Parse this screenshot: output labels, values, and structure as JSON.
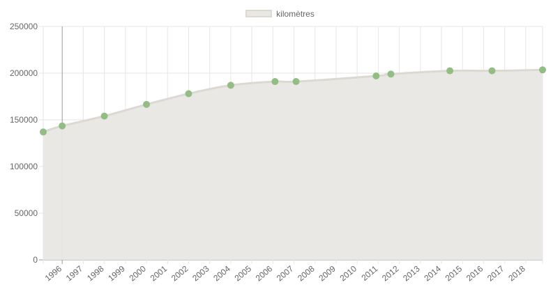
{
  "chart_data": {
    "type": "area",
    "x_labels": [
      "1996",
      "1997",
      "1998",
      "1999",
      "2000",
      "2001",
      "2002",
      "2003",
      "2004",
      "2005",
      "2006",
      "2007",
      "2008",
      "2009",
      "2010",
      "2011",
      "2012",
      "2013",
      "2014",
      "2015",
      "2016",
      "2017",
      "2018"
    ],
    "series": [
      {
        "name": "kilomètres",
        "points": [
          {
            "x": 1995.1,
            "y": 137000
          },
          {
            "x": 1996.0,
            "y": 143500
          },
          {
            "x": 1998.0,
            "y": 154000
          },
          {
            "x": 2000.0,
            "y": 166500
          },
          {
            "x": 2002.0,
            "y": 178000
          },
          {
            "x": 2004.0,
            "y": 187000
          },
          {
            "x": 2006.1,
            "y": 191000
          },
          {
            "x": 2007.1,
            "y": 191000
          },
          {
            "x": 2010.9,
            "y": 197000
          },
          {
            "x": 2011.6,
            "y": 199000
          },
          {
            "x": 2014.4,
            "y": 202500
          },
          {
            "x": 2016.4,
            "y": 202500
          },
          {
            "x": 2018.8,
            "y": 203500
          }
        ]
      }
    ],
    "y_ticks": [
      "0",
      "50000",
      "100000",
      "150000",
      "200000",
      "250000"
    ],
    "ylim": [
      0,
      250000
    ],
    "grid": true,
    "legend_position": "top-center",
    "colors": {
      "fill": "#e9e7e3",
      "line": "#dcd9d3",
      "point": "#93bd85",
      "grid": "#e6e6e6",
      "axis": "#999999",
      "text": "#666666"
    }
  }
}
